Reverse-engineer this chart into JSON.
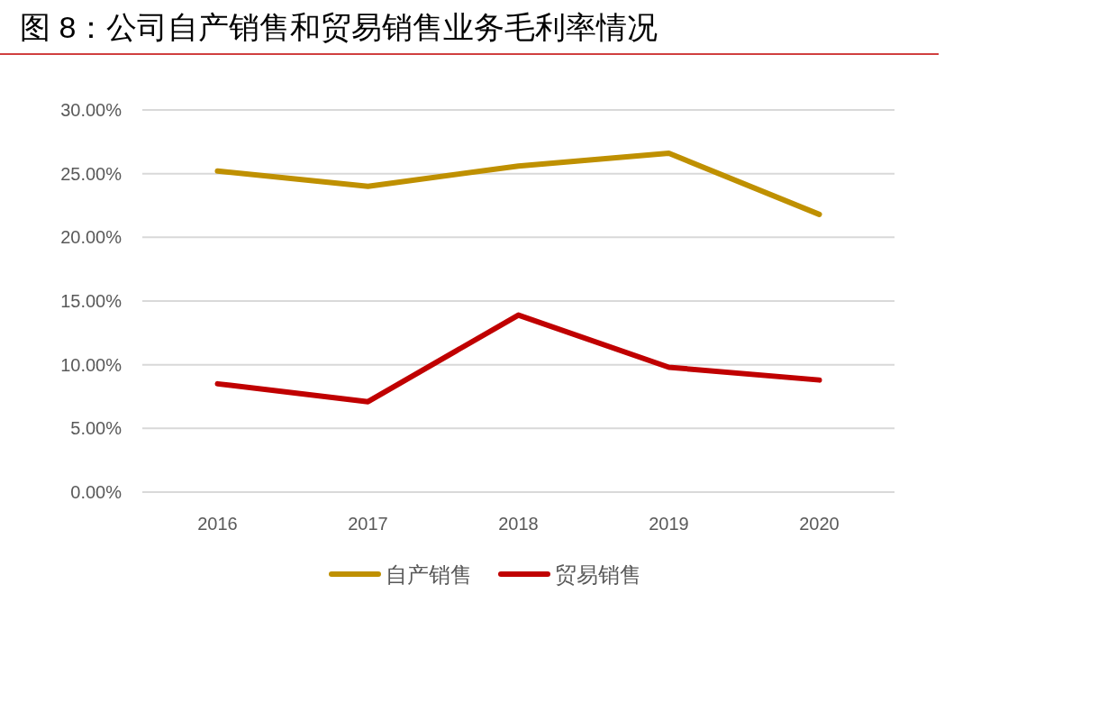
{
  "chart_data": {
    "type": "line",
    "title": "图 8：公司自产销售和贸易销售业务毛利率情况",
    "categories": [
      "2016",
      "2017",
      "2018",
      "2019",
      "2020"
    ],
    "series": [
      {
        "name": "自产销售",
        "color": "#bf9000",
        "values": [
          25.2,
          24.0,
          25.6,
          26.6,
          21.8
        ]
      },
      {
        "name": "贸易销售",
        "color": "#c00000",
        "values": [
          8.5,
          7.1,
          13.9,
          9.8,
          8.8
        ]
      }
    ],
    "ylim": [
      0,
      30
    ],
    "yticks": [
      {
        "value": 0,
        "label": "0.00%"
      },
      {
        "value": 5,
        "label": "5.00%"
      },
      {
        "value": 10,
        "label": "10.00%"
      },
      {
        "value": 15,
        "label": "15.00%"
      },
      {
        "value": 20,
        "label": "20.00%"
      },
      {
        "value": 25,
        "label": "25.00%"
      },
      {
        "value": 30,
        "label": "30.00%"
      }
    ],
    "grid": "y",
    "legend": "bottom",
    "marker": "none",
    "line_style": "solid"
  }
}
